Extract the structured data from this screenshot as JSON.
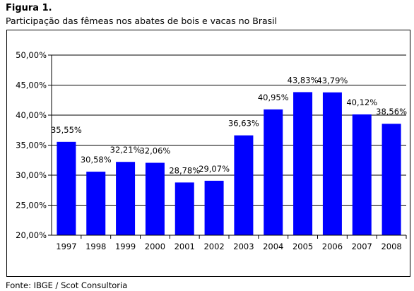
{
  "figure": {
    "label": "Figura 1.",
    "subtitle": "Participação das fêmeas nos abates de bois e vacas no Brasil",
    "source": "Fonte: IBGE / Scot Consultoria"
  },
  "chart_data": {
    "type": "bar",
    "title": "",
    "xlabel": "",
    "ylabel": "",
    "categories": [
      "1997",
      "1998",
      "1999",
      "2000",
      "2001",
      "2002",
      "2003",
      "2004",
      "2005",
      "2006",
      "2007",
      "2008"
    ],
    "values": [
      35.55,
      30.58,
      32.21,
      32.06,
      28.78,
      29.07,
      36.63,
      40.95,
      43.83,
      43.79,
      40.12,
      38.56
    ],
    "value_labels": [
      "35,55%",
      "30,58%",
      "32,21%",
      "32,06%",
      "28,78%",
      "29,07%",
      "36,63%",
      "40,95%",
      "43,83%",
      "43,79%",
      "40,12%",
      "38,56%"
    ],
    "ylim": [
      20,
      50
    ],
    "yticks": [
      20,
      25,
      30,
      35,
      40,
      45,
      50
    ],
    "ytick_labels": [
      "20,00%",
      "25,00%",
      "30,00%",
      "35,00%",
      "40,00%",
      "45,00%",
      "50,00%"
    ],
    "grid": true,
    "legend": "none",
    "bar_color": "#0000ff"
  }
}
